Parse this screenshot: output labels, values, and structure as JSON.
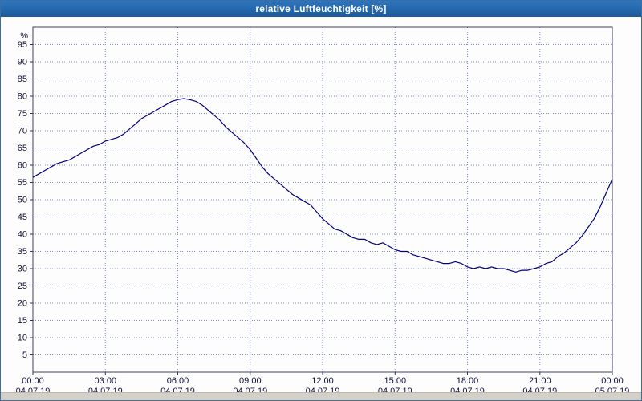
{
  "window": {
    "title": "relative Luftfeuchtigkeit [%]"
  },
  "chart_data": {
    "type": "line",
    "title": "relative Luftfeuchtigkeit [%]",
    "xlabel": "",
    "ylabel": "%",
    "ylim": [
      0,
      100
    ],
    "yticks": [
      5,
      10,
      15,
      20,
      25,
      30,
      35,
      40,
      45,
      50,
      55,
      60,
      65,
      70,
      75,
      80,
      85,
      90,
      95
    ],
    "xticks": [
      {
        "hour": 0,
        "time": "00:00",
        "date": "04.07.19"
      },
      {
        "hour": 3,
        "time": "03:00",
        "date": "04.07.19"
      },
      {
        "hour": 6,
        "time": "06:00",
        "date": "04.07.19"
      },
      {
        "hour": 9,
        "time": "09:00",
        "date": "04.07.19"
      },
      {
        "hour": 12,
        "time": "12:00",
        "date": "04.07.19"
      },
      {
        "hour": 15,
        "time": "15:00",
        "date": "04.07.19"
      },
      {
        "hour": 18,
        "time": "18:00",
        "date": "04.07.19"
      },
      {
        "hour": 21,
        "time": "21:00",
        "date": "04.07.19"
      },
      {
        "hour": 24,
        "time": "00:00",
        "date": "05.07.19"
      }
    ],
    "grid": true,
    "grid_color": "#8090c0",
    "legend": "none",
    "series": [
      {
        "name": "relative Luftfeuchtigkeit",
        "unit": "%",
        "color": "#000080",
        "x": [
          0,
          0.25,
          0.5,
          0.75,
          1,
          1.25,
          1.5,
          1.75,
          2,
          2.25,
          2.5,
          2.75,
          3,
          3.25,
          3.5,
          3.75,
          4,
          4.25,
          4.5,
          4.75,
          5,
          5.25,
          5.5,
          5.75,
          6,
          6.25,
          6.5,
          6.75,
          7,
          7.25,
          7.5,
          7.75,
          8,
          8.25,
          8.5,
          8.75,
          9,
          9.25,
          9.5,
          9.75,
          10,
          10.25,
          10.5,
          10.75,
          11,
          11.25,
          11.5,
          11.75,
          12,
          12.25,
          12.5,
          12.75,
          13,
          13.25,
          13.5,
          13.75,
          14,
          14.25,
          14.5,
          14.75,
          15,
          15.25,
          15.5,
          15.75,
          16,
          16.25,
          16.5,
          16.75,
          17,
          17.25,
          17.5,
          17.75,
          18,
          18.25,
          18.5,
          18.75,
          19,
          19.25,
          19.5,
          19.75,
          20,
          20.25,
          20.5,
          20.75,
          21,
          21.25,
          21.5,
          21.75,
          22,
          22.25,
          22.5,
          22.75,
          23,
          23.25,
          23.5,
          23.75,
          24
        ],
        "values": [
          56.5,
          57.5,
          58.5,
          59.5,
          60.5,
          61,
          61.5,
          62.5,
          63.5,
          64.5,
          65.5,
          66,
          67,
          67.5,
          68,
          69,
          70.5,
          72,
          73.5,
          74.5,
          75.5,
          76.5,
          77.5,
          78.5,
          79,
          79.3,
          79,
          78.5,
          77.5,
          76,
          74.5,
          73,
          71,
          69.5,
          68,
          66.5,
          64.5,
          62,
          59.5,
          57.5,
          56,
          54.5,
          53,
          51.5,
          50.5,
          49.5,
          48.5,
          46.5,
          44.5,
          43,
          41.5,
          41,
          40,
          39,
          38.5,
          38.5,
          37.5,
          37,
          37.5,
          36.5,
          35.5,
          35,
          35,
          34,
          33.5,
          33,
          32.5,
          32,
          31.5,
          31.5,
          32,
          31.5,
          30.5,
          30,
          30.5,
          30,
          30.5,
          30,
          30,
          29.5,
          29,
          29.5,
          29.5,
          30,
          30.5,
          31.5,
          32,
          33.5,
          34.5,
          36,
          37.5,
          39.5,
          42,
          44.5,
          48,
          52,
          56
        ]
      }
    ]
  }
}
